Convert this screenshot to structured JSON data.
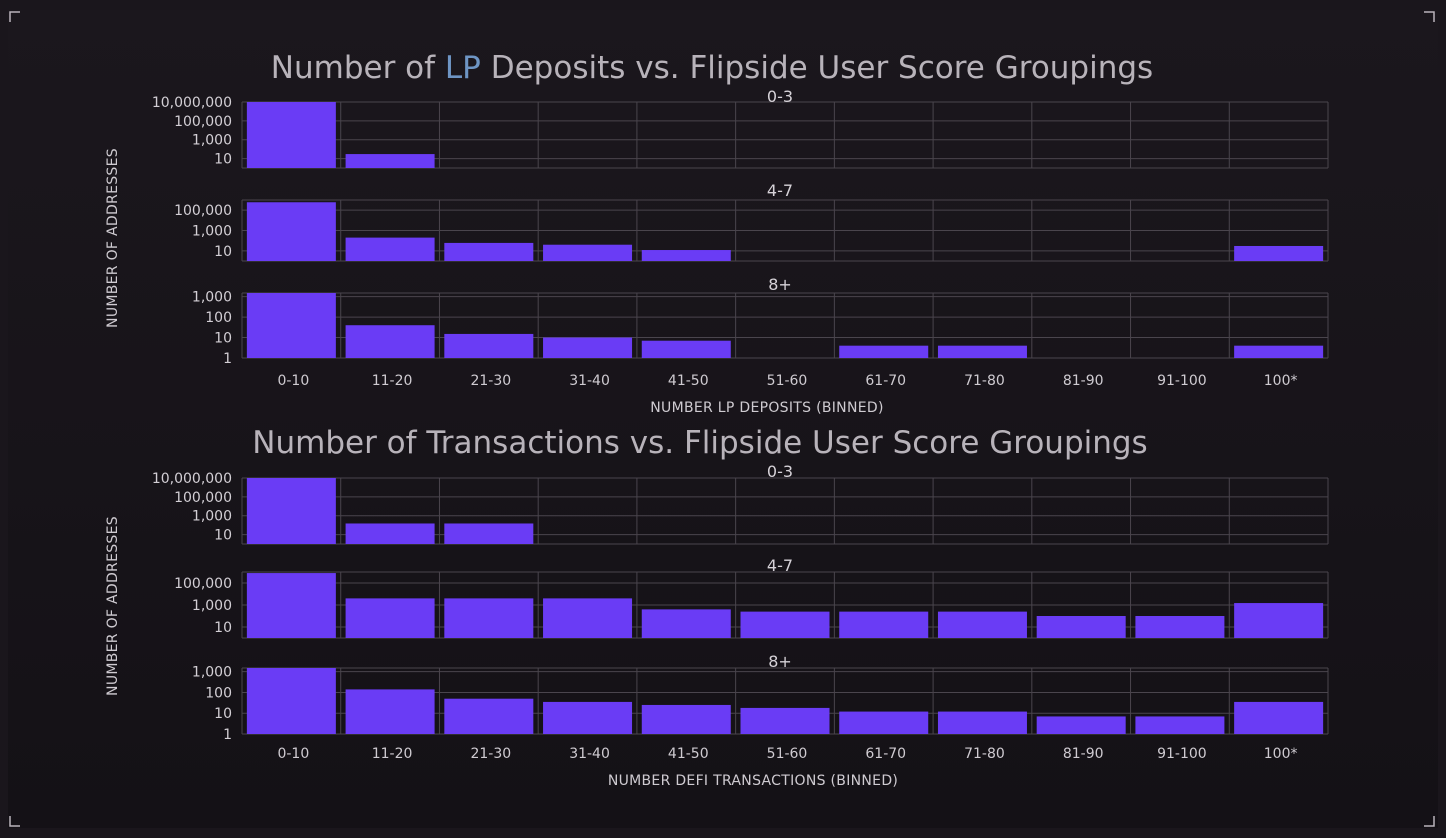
{
  "theme": {
    "background": "#141116",
    "bar_color": "#6a3cf5",
    "highlight_color": "#6e95c4"
  },
  "chart_data": [
    {
      "type": "bar",
      "title_parts": [
        "Number of ",
        "LP",
        " Deposits vs. Flipside User Score Groupings"
      ],
      "ylabel": "NUMBER OF ADDRESSES",
      "xlabel": "NUMBER LP DEPOSITS (BINNED)",
      "yscale": "log",
      "categories": [
        "0-10",
        "11-20",
        "21-30",
        "31-40",
        "41-50",
        "51-60",
        "61-70",
        "71-80",
        "81-90",
        "91-100",
        "100*"
      ],
      "panels": [
        {
          "name": "0-3",
          "ylim": [
            1,
            10000000
          ],
          "yticks": [
            10,
            1000,
            100000,
            10000000
          ],
          "ytick_labels": [
            "10",
            "1,000",
            "100,000",
            "10,000,000"
          ],
          "values": [
            10000000,
            30,
            null,
            null,
            null,
            null,
            null,
            null,
            null,
            null,
            null
          ]
        },
        {
          "name": "4-7",
          "ylim": [
            1,
            1000000
          ],
          "yticks": [
            10,
            1000,
            100000
          ],
          "ytick_labels": [
            "10",
            "1,000",
            "100,000"
          ],
          "values": [
            600000,
            200,
            60,
            40,
            12,
            null,
            null,
            null,
            null,
            null,
            30
          ]
        },
        {
          "name": "8+",
          "ylim": [
            1,
            1500
          ],
          "yticks": [
            1,
            10,
            100,
            1000
          ],
          "ytick_labels": [
            "1",
            "10",
            "100",
            "1,000"
          ],
          "values": [
            1500,
            40,
            15,
            10,
            7,
            null,
            4,
            4,
            null,
            null,
            4
          ]
        }
      ]
    },
    {
      "type": "bar",
      "title_parts": [
        "Number of Transactions vs. Flipside User Score Groupings"
      ],
      "ylabel": "NUMBER OF ADDRESSES",
      "xlabel": "NUMBER DEFI TRANSACTIONS (BINNED)",
      "yscale": "log",
      "categories": [
        "0-10",
        "11-20",
        "21-30",
        "31-40",
        "41-50",
        "51-60",
        "61-70",
        "71-80",
        "81-90",
        "91-100",
        "100*"
      ],
      "panels": [
        {
          "name": "0-3",
          "ylim": [
            1,
            10000000
          ],
          "yticks": [
            10,
            1000,
            100000,
            10000000
          ],
          "ytick_labels": [
            "10",
            "1,000",
            "100,000",
            "10,000,000"
          ],
          "values": [
            10000000,
            150,
            150,
            null,
            null,
            null,
            null,
            null,
            null,
            null,
            null
          ]
        },
        {
          "name": "4-7",
          "ylim": [
            1,
            1000000
          ],
          "yticks": [
            10,
            1000,
            100000
          ],
          "ytick_labels": [
            "10",
            "1,000",
            "100,000"
          ],
          "values": [
            800000,
            4000,
            4000,
            4000,
            400,
            250,
            250,
            250,
            100,
            100,
            1500
          ]
        },
        {
          "name": "8+",
          "ylim": [
            1,
            1500
          ],
          "yticks": [
            1,
            10,
            100,
            1000
          ],
          "ytick_labels": [
            "1",
            "10",
            "100",
            "1,000"
          ],
          "values": [
            1500,
            140,
            50,
            35,
            25,
            18,
            12,
            12,
            7,
            7,
            35
          ]
        }
      ]
    }
  ]
}
